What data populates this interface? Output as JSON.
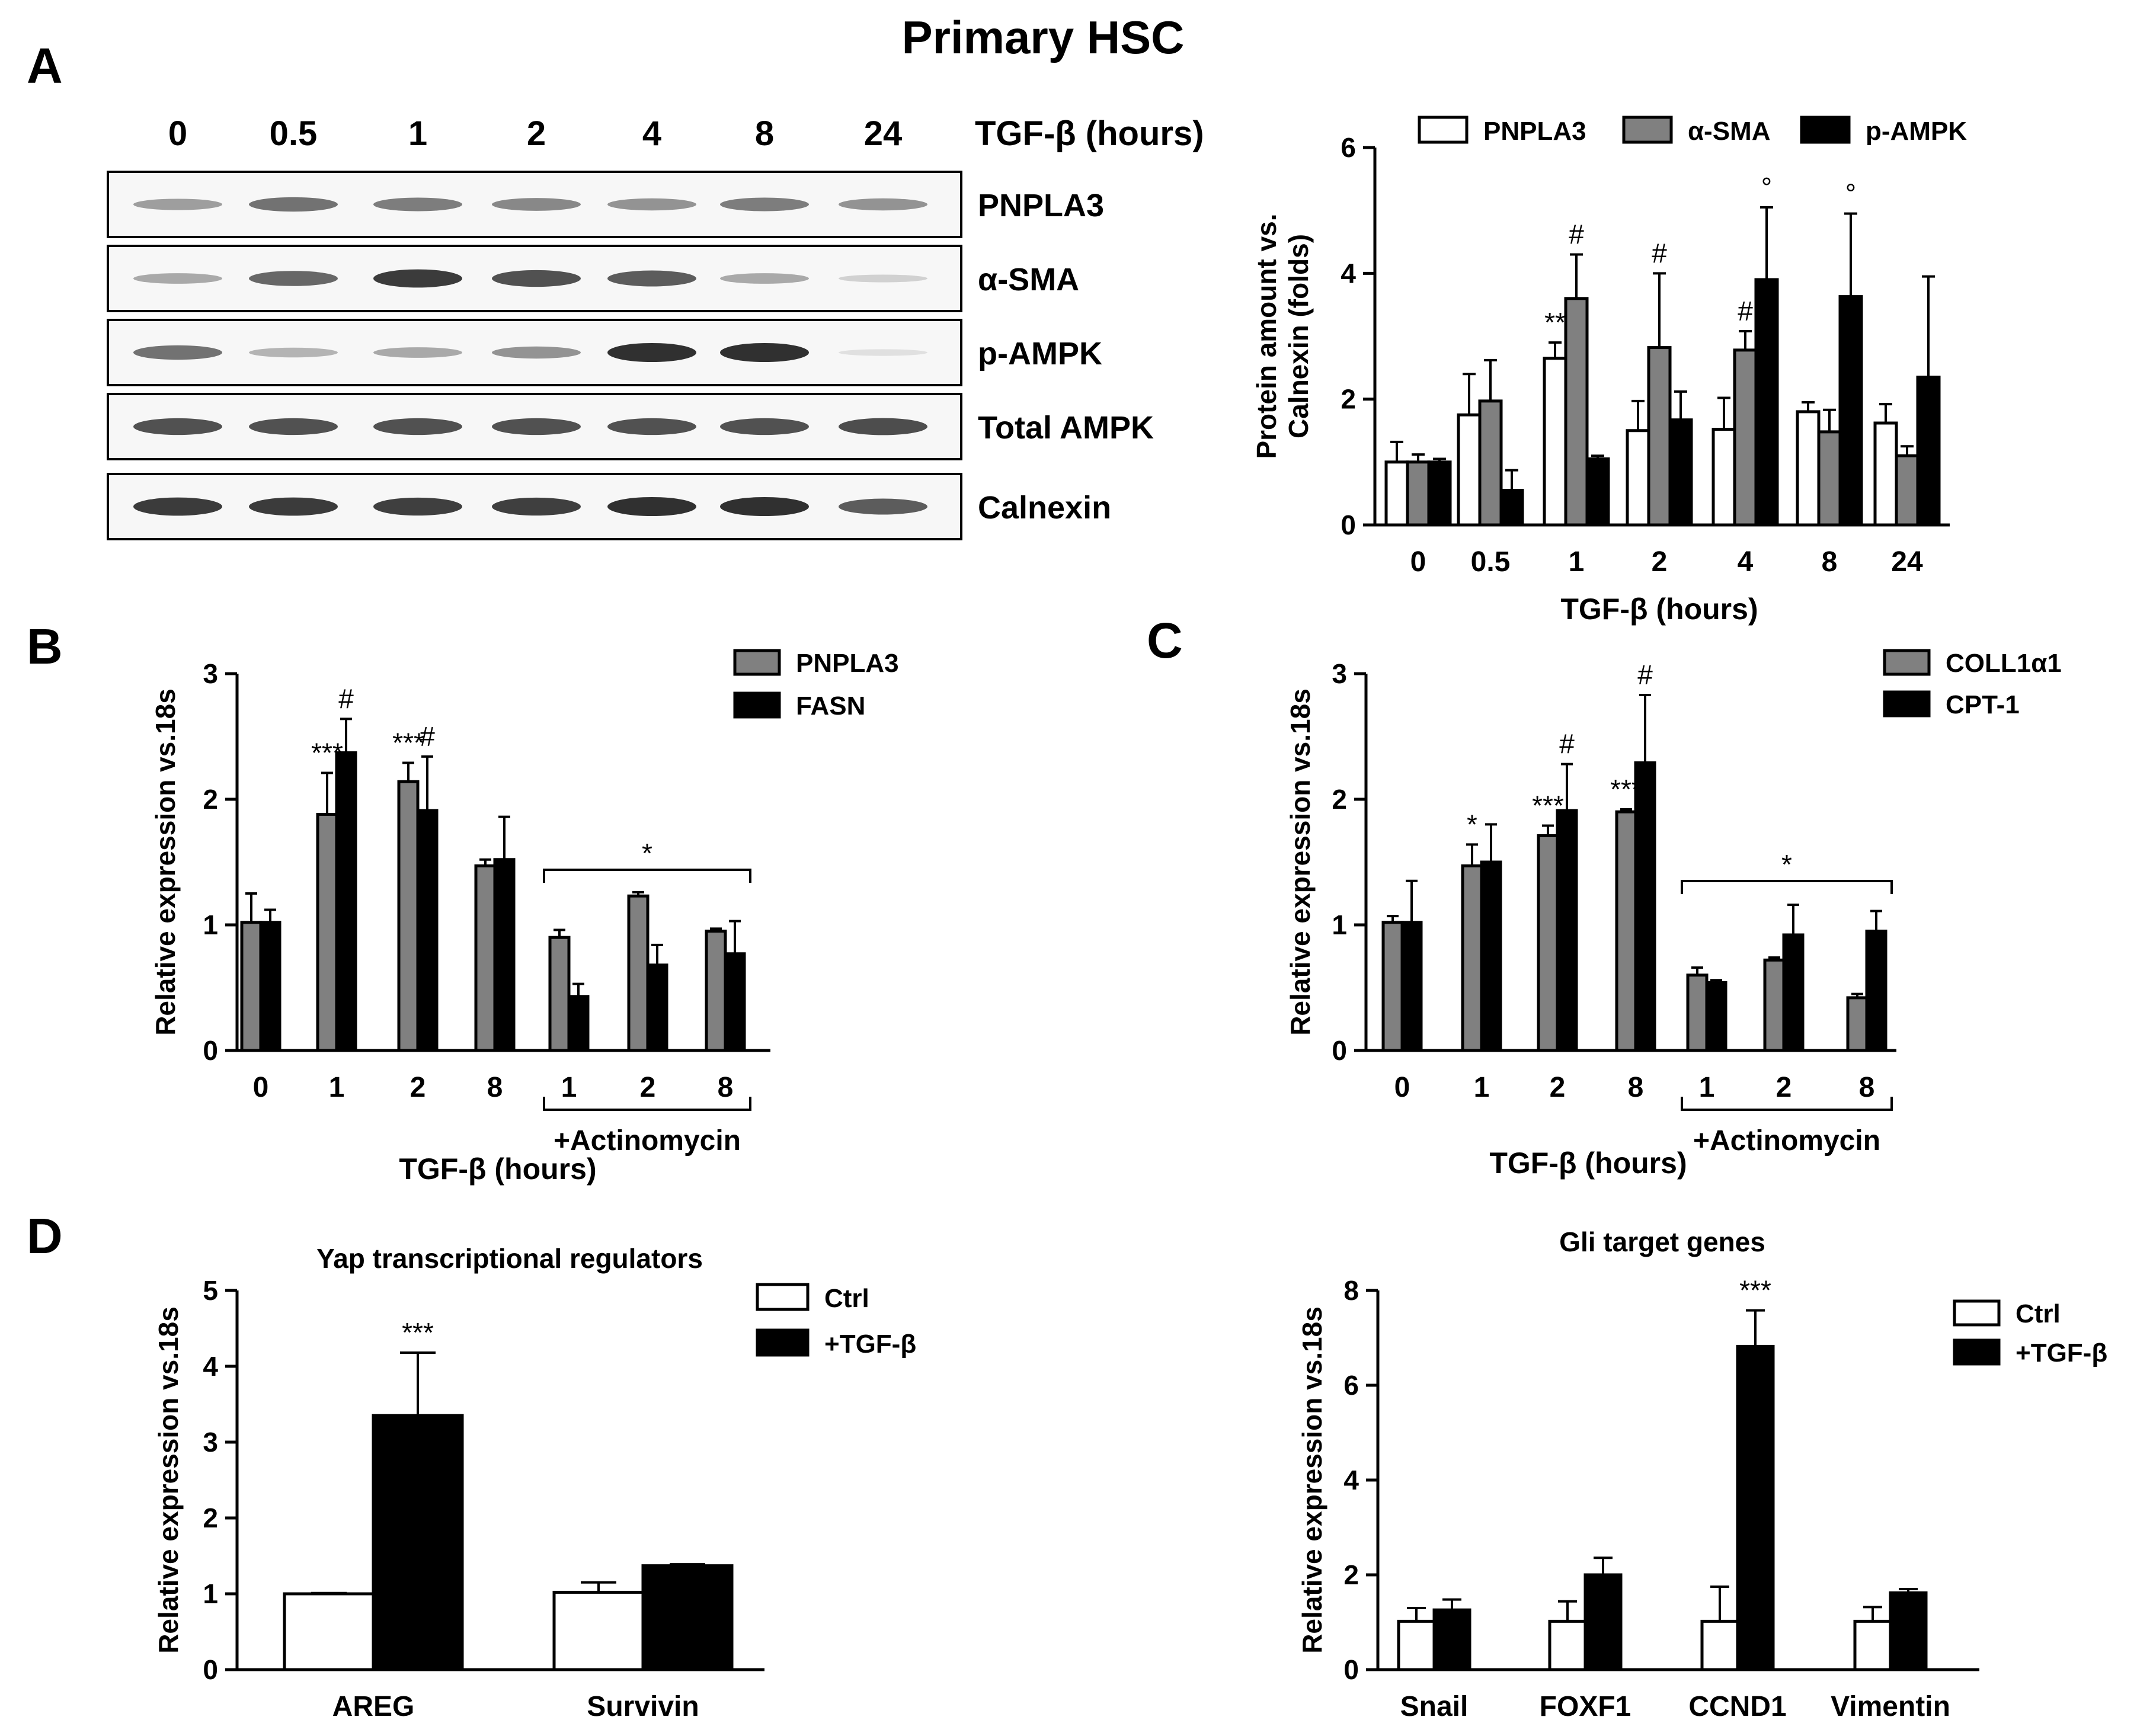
{
  "figure_title": "Primary HSC",
  "panel_labels": {
    "a": "A",
    "b": "B",
    "c": "C",
    "d": "D"
  },
  "blot": {
    "time_points": [
      "0",
      "0.5",
      "1",
      "2",
      "4",
      "8",
      "24"
    ],
    "axis_label": "TGF-β (hours)",
    "rows": [
      {
        "label": "PNPLA3",
        "intensity": [
          0.35,
          0.55,
          0.5,
          0.45,
          0.4,
          0.5,
          0.4
        ]
      },
      {
        "label": "α-SMA",
        "intensity": [
          0.3,
          0.6,
          0.8,
          0.7,
          0.65,
          0.3,
          0.12
        ]
      },
      {
        "label": "p-AMPK",
        "intensity": [
          0.55,
          0.25,
          0.3,
          0.4,
          0.85,
          0.85,
          0.05
        ]
      },
      {
        "label": "Total AMPK",
        "intensity": [
          0.7,
          0.7,
          0.7,
          0.7,
          0.7,
          0.7,
          0.72
        ]
      },
      {
        "label": "Calnexin",
        "intensity": [
          0.8,
          0.8,
          0.78,
          0.78,
          0.85,
          0.85,
          0.65
        ]
      }
    ]
  },
  "chart_data": [
    {
      "id": "A",
      "type": "bar",
      "title": "",
      "xlabel": "TGF-β (hours)",
      "ylabel": [
        "Protein amount vs.",
        "Calnexin (folds)"
      ],
      "ylim": [
        0,
        6
      ],
      "yticks": [
        "0",
        "2",
        "4",
        "6"
      ],
      "categories": [
        "0",
        "0.5",
        "1",
        "2",
        "4",
        "8",
        "24"
      ],
      "series": [
        {
          "name": "PNPLA3",
          "color": "#ffffff",
          "values": [
            1.0,
            1.75,
            2.65,
            1.5,
            1.52,
            1.8,
            1.62
          ],
          "errors": [
            0.32,
            0.65,
            0.25,
            0.47,
            0.5,
            0.15,
            0.3
          ]
        },
        {
          "name": "α-SMA",
          "color": "#808080",
          "values": [
            1.0,
            1.97,
            3.6,
            2.82,
            2.78,
            1.48,
            1.1
          ],
          "errors": [
            0.12,
            0.65,
            0.7,
            1.18,
            0.3,
            0.35,
            0.15
          ]
        },
        {
          "name": "p-AMPK",
          "color": "#000000",
          "values": [
            1.0,
            0.55,
            1.05,
            1.67,
            3.9,
            3.63,
            2.35
          ],
          "errors": [
            0.05,
            0.32,
            0.05,
            0.45,
            1.15,
            1.32,
            1.6
          ]
        }
      ],
      "annotations": [
        {
          "cat": 2,
          "series": 0,
          "text": "**"
        },
        {
          "cat": 2,
          "series": 1,
          "text": "#"
        },
        {
          "cat": 3,
          "series": 1,
          "text": "#"
        },
        {
          "cat": 4,
          "series": 1,
          "text": "#"
        },
        {
          "cat": 4,
          "series": 2,
          "text": "°"
        },
        {
          "cat": 5,
          "series": 2,
          "text": "°"
        }
      ]
    },
    {
      "id": "B",
      "type": "bar",
      "title": "",
      "xlabel": "TGF-β (hours)",
      "ylabel": [
        "Relative expression vs.18s"
      ],
      "ylim": [
        0,
        3
      ],
      "yticks": [
        "0",
        "1",
        "2",
        "3"
      ],
      "categories": [
        "0",
        "1",
        "2",
        "8",
        "1",
        "2",
        "8"
      ],
      "bracket": {
        "from": 4,
        "to": 6,
        "label": "+Actinomycin",
        "annotation": "*"
      },
      "series": [
        {
          "name": "PNPLA3",
          "color": "#808080",
          "values": [
            1.02,
            1.88,
            2.14,
            1.47,
            0.9,
            1.23,
            0.95
          ],
          "errors": [
            0.23,
            0.33,
            0.15,
            0.05,
            0.06,
            0.03,
            0.02
          ]
        },
        {
          "name": "FASN",
          "color": "#000000",
          "values": [
            1.02,
            2.37,
            1.91,
            1.52,
            0.43,
            0.68,
            0.77
          ],
          "errors": [
            0.1,
            0.27,
            0.43,
            0.34,
            0.1,
            0.16,
            0.26
          ]
        }
      ],
      "annotations": [
        {
          "cat": 1,
          "series": 0,
          "text": "***"
        },
        {
          "cat": 1,
          "series": 1,
          "text": "#"
        },
        {
          "cat": 2,
          "series": 0,
          "text": "***"
        },
        {
          "cat": 2,
          "series": 1,
          "text": "#"
        }
      ]
    },
    {
      "id": "C",
      "type": "bar",
      "title": "",
      "xlabel": "TGF-β (hours)",
      "ylabel": [
        "Relative expression vs.18s"
      ],
      "ylim": [
        0,
        3
      ],
      "yticks": [
        "0",
        "1",
        "2",
        "3"
      ],
      "categories": [
        "0",
        "1",
        "2",
        "8",
        "1",
        "2",
        "8"
      ],
      "bracket": {
        "from": 4,
        "to": 6,
        "label": "+Actinomycin",
        "annotation": "*"
      },
      "series": [
        {
          "name": "COLL1α1",
          "color": "#808080",
          "values": [
            1.02,
            1.47,
            1.71,
            1.9,
            0.6,
            0.72,
            0.42
          ],
          "errors": [
            0.05,
            0.17,
            0.08,
            0.02,
            0.06,
            0.02,
            0.03
          ]
        },
        {
          "name": "CPT-1",
          "color": "#000000",
          "values": [
            1.02,
            1.5,
            1.91,
            2.29,
            0.54,
            0.92,
            0.95
          ],
          "errors": [
            0.33,
            0.3,
            0.37,
            0.54,
            0.02,
            0.24,
            0.16
          ]
        }
      ],
      "annotations": [
        {
          "cat": 1,
          "series": 0,
          "text": "*"
        },
        {
          "cat": 2,
          "series": 0,
          "text": "***"
        },
        {
          "cat": 2,
          "series": 1,
          "text": "#"
        },
        {
          "cat": 3,
          "series": 0,
          "text": "***"
        },
        {
          "cat": 3,
          "series": 1,
          "text": "#"
        }
      ]
    },
    {
      "id": "D1",
      "type": "bar",
      "title": "Yap transcriptional regulators",
      "xlabel": "",
      "ylabel": [
        "Relative expression vs.18s"
      ],
      "ylim": [
        0,
        5
      ],
      "yticks": [
        "0",
        "1",
        "2",
        "3",
        "4",
        "5"
      ],
      "categories": [
        "AREG",
        "Survivin"
      ],
      "series": [
        {
          "name": "Ctrl",
          "color": "#ffffff",
          "values": [
            1.0,
            1.02
          ],
          "errors": [
            0.01,
            0.13
          ]
        },
        {
          "name": "+TGF-β",
          "color": "#000000",
          "values": [
            3.35,
            1.37
          ],
          "errors": [
            0.83,
            0.02
          ]
        }
      ],
      "annotations": [
        {
          "cat": 0,
          "series": 1,
          "text": "***"
        }
      ]
    },
    {
      "id": "D2",
      "type": "bar",
      "title": "Gli target genes",
      "xlabel": "",
      "ylabel": [
        "Relative expression vs.18s"
      ],
      "ylim": [
        0,
        8
      ],
      "yticks": [
        "0",
        "2",
        "4",
        "6",
        "8"
      ],
      "categories": [
        "Snail",
        "FOXF1",
        "CCND1",
        "Vimentin"
      ],
      "series": [
        {
          "name": "Ctrl",
          "color": "#ffffff",
          "values": [
            1.02,
            1.02,
            1.02,
            1.02
          ],
          "errors": [
            0.28,
            0.42,
            0.73,
            0.3
          ]
        },
        {
          "name": "+TGF-β",
          "color": "#000000",
          "values": [
            1.26,
            2.0,
            6.82,
            1.62
          ],
          "errors": [
            0.22,
            0.36,
            0.76,
            0.08
          ]
        }
      ],
      "annotations": [
        {
          "cat": 2,
          "series": 1,
          "text": "***"
        }
      ]
    }
  ]
}
